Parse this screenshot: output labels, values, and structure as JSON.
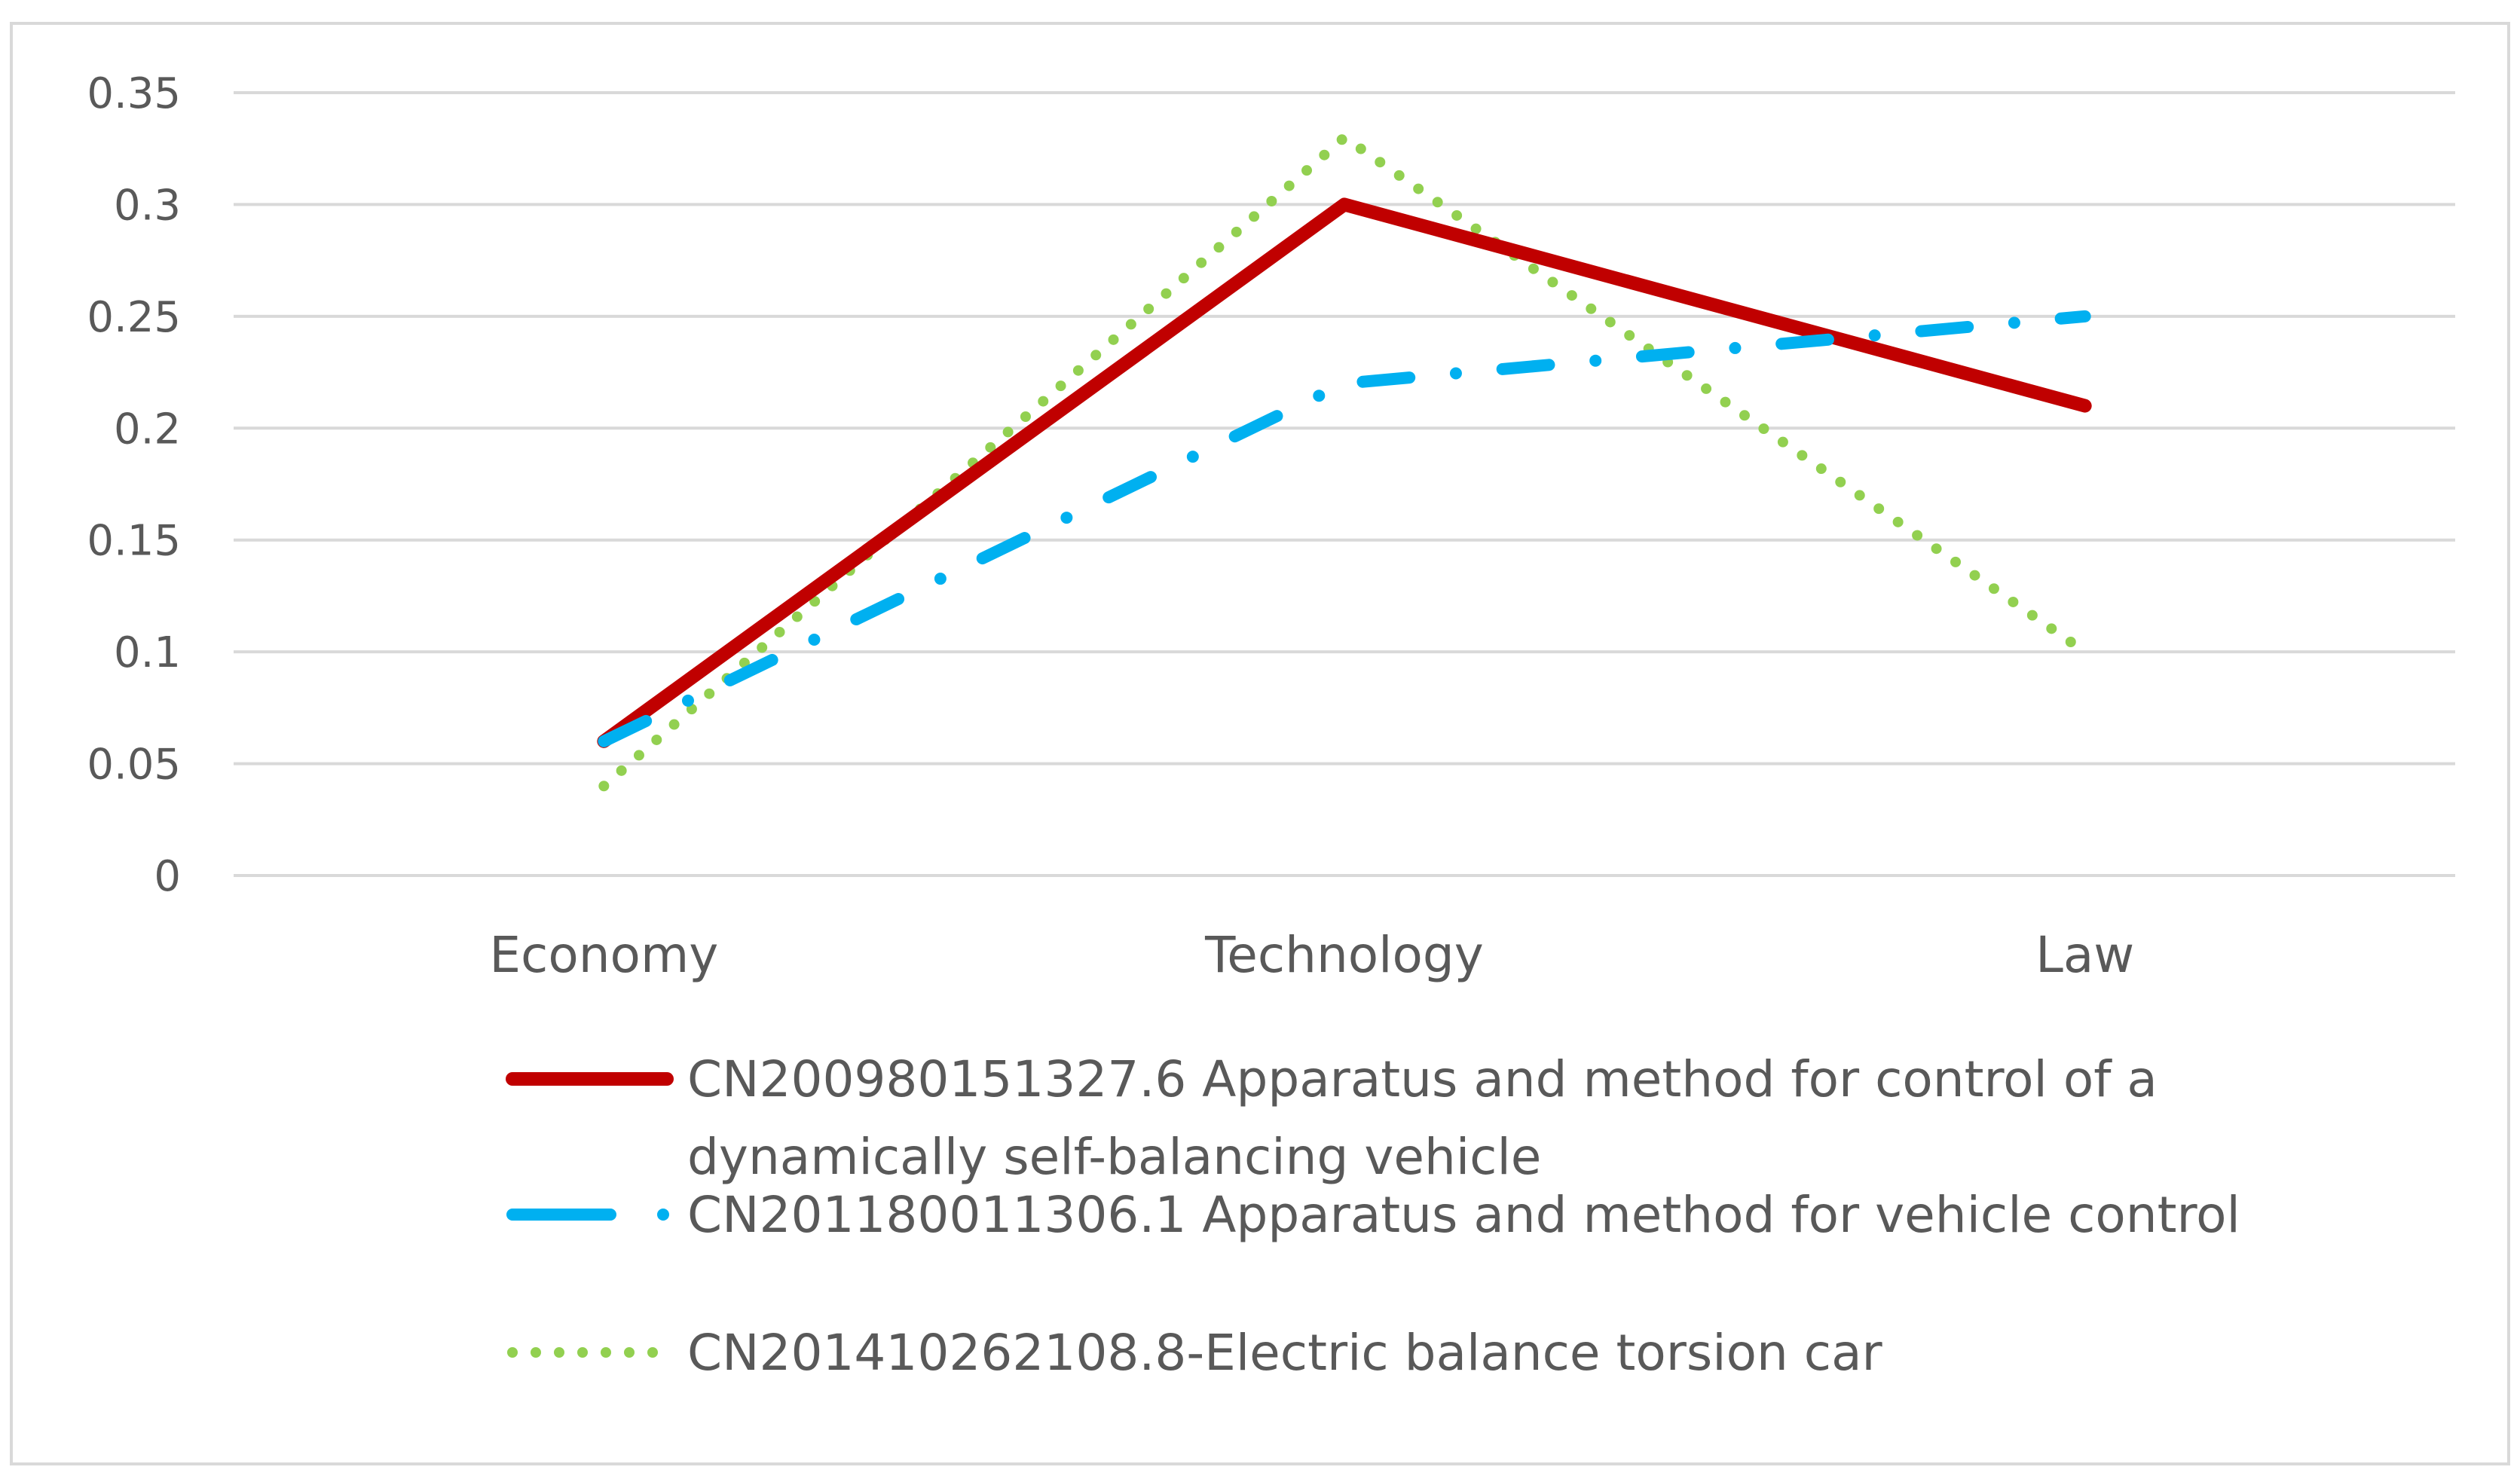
{
  "chart_data": {
    "type": "line",
    "title": "",
    "xlabel": "",
    "ylabel": "",
    "categories": [
      "Economy",
      "Technology",
      "Law"
    ],
    "ylim": [
      0,
      0.35
    ],
    "yticks": [
      "0",
      "0.05",
      "0.1",
      "0.15",
      "0.2",
      "0.25",
      "0.3",
      "0.35"
    ],
    "ytick_values": [
      0,
      0.05,
      0.1,
      0.15,
      0.2,
      0.25,
      0.3,
      0.35
    ],
    "grid": true,
    "legend_position": "bottom",
    "series": [
      {
        "name": "CN200980151327.6 Apparatus and method for control of a dynamically self-balancing vehicle",
        "legend_lines": [
          "CN200980151327.6 Apparatus and method for control of a",
          "dynamically self-balancing vehicle"
        ],
        "values": [
          0.06,
          0.3,
          0.21
        ],
        "color": "#C00000",
        "style": "solid"
      },
      {
        "name": "CN201180011306.1 Apparatus and method for vehicle control",
        "legend_lines": [
          "CN201180011306.1 Apparatus and method for vehicle control"
        ],
        "values": [
          0.06,
          0.22,
          0.25
        ],
        "color": "#00B0F0",
        "style": "long-dash-dot"
      },
      {
        "name": "CN201410262108.8-Electric balance torsion car",
        "legend_lines": [
          "CN201410262108.8-Electric balance torsion car"
        ],
        "values": [
          0.04,
          0.33,
          0.1
        ],
        "color": "#92D050",
        "style": "dotted"
      }
    ]
  }
}
